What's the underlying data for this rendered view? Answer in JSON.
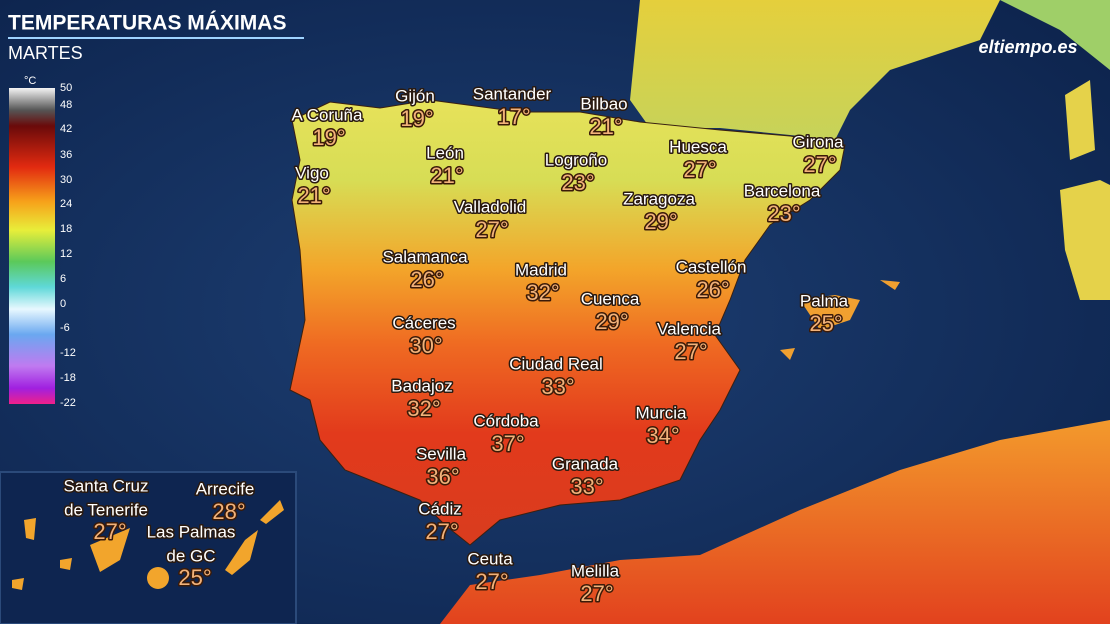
{
  "header": {
    "title": "TEMPERATURAS MÁXIMAS",
    "subtitle": "MARTES"
  },
  "logo": "eltiempo.es",
  "legend": {
    "unit": "°C",
    "labels": [
      50,
      48,
      42,
      36,
      30,
      24,
      18,
      12,
      6,
      0,
      -6,
      -12,
      -18,
      -22
    ]
  },
  "cities": [
    {
      "name": "A Coruña",
      "temp": "19°"
    },
    {
      "name": "Gijón",
      "temp": "19°"
    },
    {
      "name": "Santander",
      "temp": "17°"
    },
    {
      "name": "Bilbao",
      "temp": "21°"
    },
    {
      "name": "Vigo",
      "temp": "21°"
    },
    {
      "name": "León",
      "temp": "21°"
    },
    {
      "name": "Logroño",
      "temp": "23°"
    },
    {
      "name": "Huesca",
      "temp": "27°"
    },
    {
      "name": "Girona",
      "temp": "27°"
    },
    {
      "name": "Barcelona",
      "temp": "23°"
    },
    {
      "name": "Zaragoza",
      "temp": "29°"
    },
    {
      "name": "Valladolid",
      "temp": "27°"
    },
    {
      "name": "Salamanca",
      "temp": "26°"
    },
    {
      "name": "Madrid",
      "temp": "32°"
    },
    {
      "name": "Castellón",
      "temp": "26°"
    },
    {
      "name": "Cuenca",
      "temp": "29°"
    },
    {
      "name": "Palma",
      "temp": "25°"
    },
    {
      "name": "Cáceres",
      "temp": "30°"
    },
    {
      "name": "Valencia",
      "temp": "27°"
    },
    {
      "name": "Ciudad Real",
      "temp": "33°"
    },
    {
      "name": "Badajoz",
      "temp": "32°"
    },
    {
      "name": "Murcia",
      "temp": "34°"
    },
    {
      "name": "Córdoba",
      "temp": "37°"
    },
    {
      "name": "Sevilla",
      "temp": "36°"
    },
    {
      "name": "Granada",
      "temp": "33°"
    },
    {
      "name": "Cádiz",
      "temp": "27°"
    },
    {
      "name": "Ceuta",
      "temp": "27°"
    },
    {
      "name": "Melilla",
      "temp": "27°"
    }
  ],
  "canary_islands": [
    {
      "name": [
        "Santa Cruz",
        "de Tenerife"
      ],
      "temp": "27°"
    },
    {
      "name": [
        "Arrecife"
      ],
      "temp": "28°"
    },
    {
      "name": [
        "Las Palmas",
        "de GC"
      ],
      "temp": "25°"
    }
  ]
}
